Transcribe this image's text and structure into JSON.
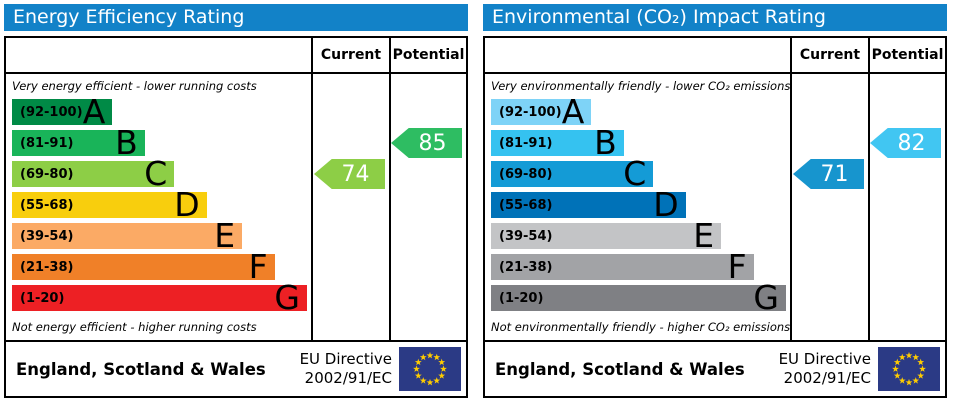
{
  "shared": {
    "header_color": "#1282c8",
    "columns": {
      "current": "Current",
      "potential": "Potential"
    },
    "footer": {
      "region": "England, Scotland & Wales",
      "directive_line1": "EU Directive",
      "directive_line2": "2002/91/EC"
    },
    "eu_flag": {
      "background": "#2b3a85",
      "star_color": "#ffcc00"
    }
  },
  "panels": [
    {
      "id": "energy-efficiency",
      "title": "Energy Efficiency Rating",
      "top_note": "Very energy efficient - lower running costs",
      "bottom_note": "Not energy efficient - higher running costs",
      "bands": [
        {
          "letter": "A",
          "range": "(92-100)",
          "color": "#008a46",
          "width_pct": 34
        },
        {
          "letter": "B",
          "range": "(81-91)",
          "color": "#19b459",
          "width_pct": 45
        },
        {
          "letter": "C",
          "range": "(69-80)",
          "color": "#8dce46",
          "width_pct": 55
        },
        {
          "letter": "D",
          "range": "(55-68)",
          "color": "#f8ce0d",
          "width_pct": 66
        },
        {
          "letter": "E",
          "range": "(39-54)",
          "color": "#fbaa65",
          "width_pct": 78
        },
        {
          "letter": "F",
          "range": "(21-38)",
          "color": "#f08028",
          "width_pct": 89
        },
        {
          "letter": "G",
          "range": "(1-20)",
          "color": "#ed2024",
          "width_pct": 100
        }
      ],
      "current": {
        "value": 74,
        "band_index": 2,
        "color": "#8dce46"
      },
      "potential": {
        "value": 85,
        "band_index": 1,
        "color": "#2ebd62"
      }
    },
    {
      "id": "co2-impact",
      "title": "Environmental (CO₂) Impact Rating",
      "top_note": "Very environmentally friendly - lower CO₂ emissions",
      "bottom_note": "Not environmentally friendly - higher CO₂ emissions",
      "bands": [
        {
          "letter": "A",
          "range": "(92-100)",
          "color": "#7ed3f7",
          "width_pct": 34
        },
        {
          "letter": "B",
          "range": "(81-91)",
          "color": "#35c2f0",
          "width_pct": 45
        },
        {
          "letter": "C",
          "range": "(69-80)",
          "color": "#149bd6",
          "width_pct": 55
        },
        {
          "letter": "D",
          "range": "(55-68)",
          "color": "#0072b8",
          "width_pct": 66
        },
        {
          "letter": "E",
          "range": "(39-54)",
          "color": "#c3c4c6",
          "width_pct": 78
        },
        {
          "letter": "F",
          "range": "(21-38)",
          "color": "#a2a3a6",
          "width_pct": 89
        },
        {
          "letter": "G",
          "range": "(1-20)",
          "color": "#7f8084",
          "width_pct": 100
        }
      ],
      "current": {
        "value": 71,
        "band_index": 2,
        "color": "#1795ce"
      },
      "potential": {
        "value": 82,
        "band_index": 1,
        "color": "#41c6f2"
      }
    }
  ],
  "chart_data": [
    {
      "type": "bar",
      "title": "Energy Efficiency Rating",
      "categories": [
        "A",
        "B",
        "C",
        "D",
        "E",
        "F",
        "G"
      ],
      "category_ranges": [
        "92-100",
        "81-91",
        "69-80",
        "55-68",
        "39-54",
        "21-38",
        "1-20"
      ],
      "scale_range": [
        1,
        100
      ],
      "bar_lengths_pct": [
        34,
        45,
        55,
        66,
        78,
        89,
        100
      ],
      "columns": [
        "Current",
        "Potential"
      ],
      "current": 74,
      "current_band": "C",
      "potential": 85,
      "potential_band": "B",
      "top_annotation": "Very energy efficient - lower running costs",
      "bottom_annotation": "Not energy efficient - higher running costs",
      "footer": "England, Scotland & Wales — EU Directive 2002/91/EC"
    },
    {
      "type": "bar",
      "title": "Environmental (CO₂) Impact Rating",
      "categories": [
        "A",
        "B",
        "C",
        "D",
        "E",
        "F",
        "G"
      ],
      "category_ranges": [
        "92-100",
        "81-91",
        "69-80",
        "55-68",
        "39-54",
        "21-38",
        "1-20"
      ],
      "scale_range": [
        1,
        100
      ],
      "bar_lengths_pct": [
        34,
        45,
        55,
        66,
        78,
        89,
        100
      ],
      "columns": [
        "Current",
        "Potential"
      ],
      "current": 71,
      "current_band": "C",
      "potential": 82,
      "potential_band": "B",
      "top_annotation": "Very environmentally friendly - lower CO₂ emissions",
      "bottom_annotation": "Not environmentally friendly - higher CO₂ emissions",
      "footer": "England, Scotland & Wales — EU Directive 2002/91/EC"
    }
  ]
}
